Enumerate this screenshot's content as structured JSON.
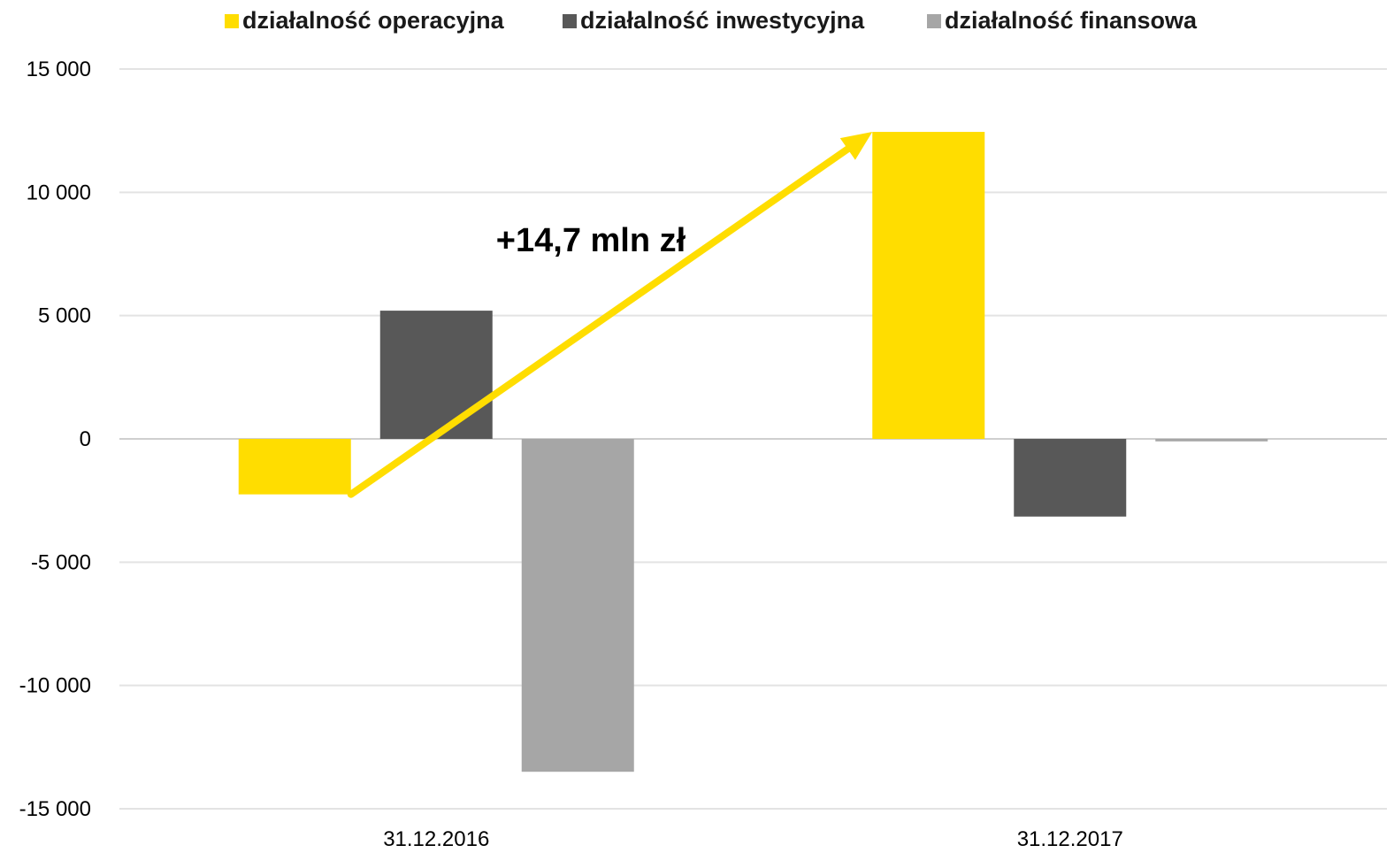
{
  "chart_data": {
    "type": "bar",
    "categories": [
      "31.12.2016",
      "31.12.2017"
    ],
    "series": [
      {
        "name": "działalność operacyjna",
        "color": "#FFDD00",
        "values": [
          -2250,
          12450
        ]
      },
      {
        "name": "działalność inwestycyjna",
        "color": "#585858",
        "values": [
          5200,
          -3150
        ]
      },
      {
        "name": "działalność finansowa",
        "color": "#A6A6A6",
        "values": [
          -13500,
          -100
        ]
      }
    ],
    "ylim": [
      -15000,
      15000
    ],
    "yticks": [
      15000,
      10000,
      5000,
      0,
      -5000,
      -10000,
      -15000
    ],
    "ytick_labels": [
      "15 000",
      "10 000",
      "5 000",
      "0",
      "-5 000",
      "-10 000",
      "-15 000"
    ],
    "negative_tick_color": "#FF0000",
    "grid": true,
    "legend_position": "top",
    "annotation": {
      "text": "+14,7 mln zł",
      "arrow_from": {
        "category": "31.12.2016",
        "series": "działalność operacyjna"
      },
      "arrow_to": {
        "category": "31.12.2017",
        "series": "działalność operacyjna"
      },
      "arrow_color": "#FFDD00"
    }
  }
}
